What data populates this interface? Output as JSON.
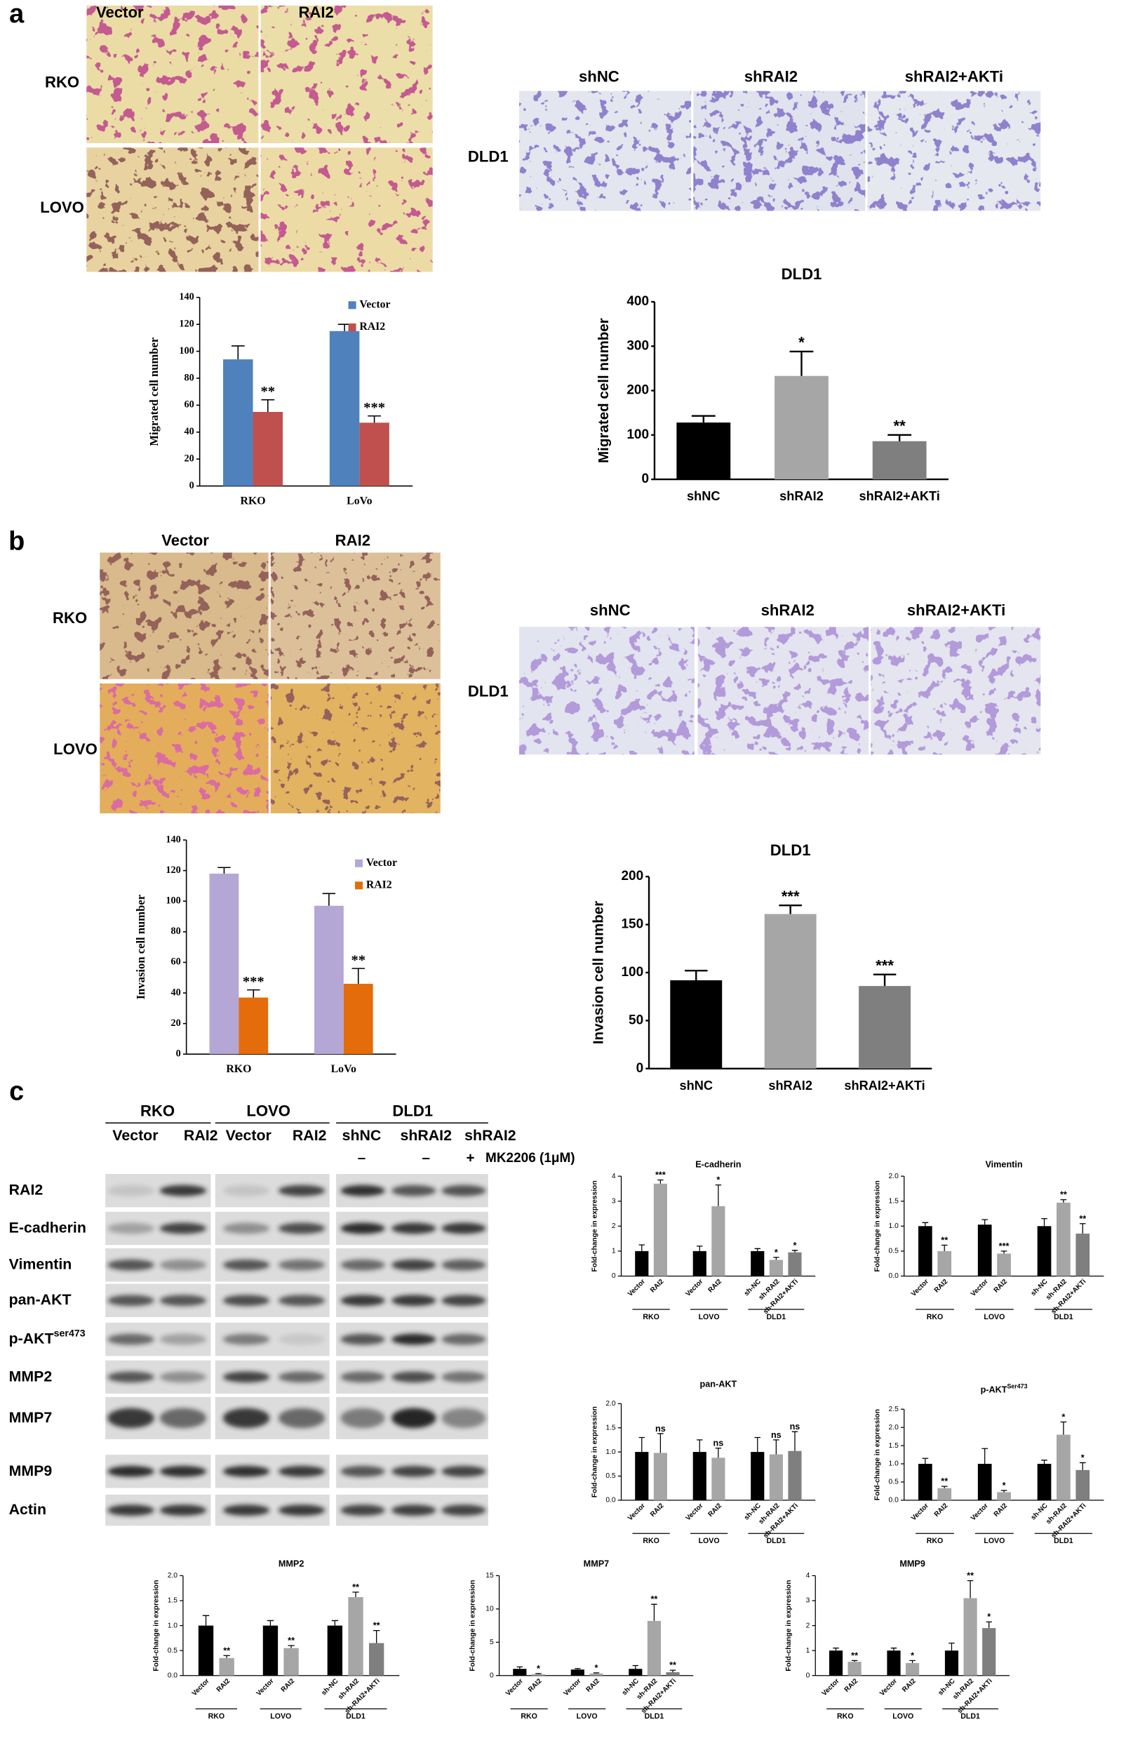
{
  "figure": {
    "panel_labels": [
      "a",
      "b",
      "c"
    ],
    "a": {
      "columns": [
        "Vector",
        "RAI2"
      ],
      "rows": [
        "RKO",
        "LOVO"
      ],
      "dld1_columns": [
        "shNC",
        "shRAI2",
        "shRAI2+AKTi"
      ],
      "dld1_row": "DLD1"
    },
    "b": {
      "columns": [
        "Vector",
        "RAI2"
      ],
      "rows": [
        "RKO",
        "LOVO"
      ],
      "dld1_columns": [
        "shNC",
        "shRAI2",
        "shRAI2+AKTi"
      ],
      "dld1_row": "DLD1"
    },
    "c": {
      "cell_lines": [
        "RKO",
        "LOVO",
        "DLD1"
      ],
      "lanes": [
        "Vector",
        "RAI2",
        "Vector",
        "RAI2",
        "shNC",
        "shRAI2",
        "shRAI2"
      ],
      "treatment_marks": [
        "–",
        "–",
        "+"
      ],
      "treatment": "MK2206 (1μM)",
      "proteins": [
        {
          "label": "RAI2"
        },
        {
          "label": "E-cadherin"
        },
        {
          "label": "Vimentin"
        },
        {
          "label": "pan-AKT"
        },
        {
          "label": "p-AKT",
          "superscript": "ser473"
        },
        {
          "label": "MMP2"
        },
        {
          "label": "MMP7"
        },
        {
          "label": "MMP9"
        },
        {
          "label": "Actin"
        }
      ]
    }
  },
  "chart_data": [
    {
      "type": "bar",
      "categories": [
        "RKO",
        "LoVo"
      ],
      "series": [
        {
          "name": "Vector",
          "color": "#4f81bd",
          "values": [
            94,
            115
          ],
          "errors": [
            10,
            5
          ]
        },
        {
          "name": "RAI2",
          "color": "#c0504d",
          "values": [
            55,
            47
          ],
          "errors": [
            9,
            5
          ],
          "annotations": [
            "**",
            "***"
          ]
        }
      ],
      "ylabel": "Migrated cell number",
      "ylim": [
        0,
        140
      ],
      "yticks": [
        0,
        20,
        40,
        60,
        80,
        100,
        120,
        140
      ],
      "legend": "upper right"
    },
    {
      "type": "bar",
      "title": "DLD1",
      "categories": [
        "shNC",
        "shRAI2",
        "shRAI2+AKTi"
      ],
      "values": [
        128,
        233,
        86
      ],
      "errors": [
        15,
        55,
        14
      ],
      "colors": [
        "#000000",
        "#a6a6a6",
        "#7f7f7f"
      ],
      "annotations": [
        null,
        "*",
        "**"
      ],
      "ylabel": "Migrated cell number",
      "ylim": [
        0,
        400
      ],
      "yticks": [
        0,
        100,
        200,
        300,
        400
      ]
    },
    {
      "type": "bar",
      "categories": [
        "RKO",
        "LoVo"
      ],
      "series": [
        {
          "name": "Vector",
          "color": "#b4a7d6",
          "values": [
            118,
            97
          ],
          "errors": [
            4,
            8
          ]
        },
        {
          "name": "RAI2",
          "color": "#e46c0a",
          "values": [
            37,
            46
          ],
          "errors": [
            5,
            10
          ],
          "annotations": [
            "***",
            "**"
          ]
        }
      ],
      "ylabel": "Invasion cell number",
      "ylim": [
        0,
        140
      ],
      "yticks": [
        0,
        20,
        40,
        60,
        80,
        100,
        120,
        140
      ],
      "legend": "upper right"
    },
    {
      "type": "bar",
      "title": "DLD1",
      "categories": [
        "shNC",
        "shRAI2",
        "shRAI2+AKTi"
      ],
      "values": [
        92,
        161,
        86
      ],
      "errors": [
        10,
        9,
        12
      ],
      "colors": [
        "#000000",
        "#a6a6a6",
        "#7f7f7f"
      ],
      "annotations": [
        null,
        "***",
        "***"
      ],
      "ylabel": "Invasion cell number",
      "ylim": [
        0,
        200
      ],
      "yticks": [
        0,
        50,
        100,
        150,
        200
      ]
    },
    {
      "type": "grouped-bar",
      "title": "E-cadherin",
      "ylabel": "Fold-change in expression",
      "ylim": [
        0,
        4
      ],
      "yticks": [
        0,
        1,
        2,
        3,
        4
      ],
      "groups": [
        {
          "name": "RKO",
          "categories": [
            "Vector",
            "RAI2"
          ],
          "values": [
            1,
            3.7
          ],
          "errors": [
            0.25,
            0.15
          ],
          "colors": [
            "#000000",
            "#a6a6a6"
          ],
          "annotations": [
            null,
            "***"
          ]
        },
        {
          "name": "LOVO",
          "categories": [
            "Vector",
            "RAI2"
          ],
          "values": [
            1,
            2.8
          ],
          "errors": [
            0.2,
            0.85
          ],
          "colors": [
            "#000000",
            "#a6a6a6"
          ],
          "annotations": [
            null,
            "*"
          ]
        },
        {
          "name": "DLD1",
          "categories": [
            "sh-NC",
            "sh-RAI2",
            "sh-RAI2+AKTi"
          ],
          "values": [
            1,
            0.65,
            0.95
          ],
          "errors": [
            0.1,
            0.1,
            0.08
          ],
          "colors": [
            "#000000",
            "#a6a6a6",
            "#7f7f7f"
          ],
          "annotations": [
            null,
            "*",
            "*"
          ]
        }
      ]
    },
    {
      "type": "grouped-bar",
      "title": "Vimentin",
      "ylabel": "Fold-change in expression",
      "ylim": [
        0,
        2
      ],
      "yticks": [
        {
          "value": 0,
          "label": "0.0"
        },
        {
          "value": 0.5,
          "label": "0.5"
        },
        {
          "value": 1,
          "label": "1.0"
        },
        {
          "value": 1.5,
          "label": "1.5"
        },
        {
          "value": 2,
          "label": "2.0"
        }
      ],
      "groups": [
        {
          "name": "RKO",
          "categories": [
            "Vector",
            "RAI2"
          ],
          "values": [
            1,
            0.5
          ],
          "errors": [
            0.07,
            0.12
          ],
          "colors": [
            "#000000",
            "#a6a6a6"
          ],
          "annotations": [
            null,
            "**"
          ]
        },
        {
          "name": "LOVO",
          "categories": [
            "Vector",
            "RAI2"
          ],
          "values": [
            1.03,
            0.45
          ],
          "errors": [
            0.1,
            0.05
          ],
          "colors": [
            "#000000",
            "#a6a6a6"
          ],
          "annotations": [
            null,
            "***"
          ]
        },
        {
          "name": "DLD1",
          "categories": [
            "sh-NC",
            "sh-RAI2",
            "sh-RAI2+AKTi"
          ],
          "values": [
            1,
            1.47,
            0.85
          ],
          "errors": [
            0.15,
            0.06,
            0.2
          ],
          "colors": [
            "#000000",
            "#a6a6a6",
            "#7f7f7f"
          ],
          "annotations": [
            null,
            "**",
            "**"
          ]
        }
      ]
    },
    {
      "type": "grouped-bar",
      "title": "pan-AKT",
      "ylabel": "Fold-change in expression",
      "ylim": [
        0,
        2
      ],
      "yticks": [
        {
          "value": 0,
          "label": "0.0"
        },
        {
          "value": 0.5,
          "label": "0.5"
        },
        {
          "value": 1,
          "label": "1.0"
        },
        {
          "value": 1.5,
          "label": "1.5"
        },
        {
          "value": 2,
          "label": "2.0"
        }
      ],
      "groups": [
        {
          "name": "RKO",
          "categories": [
            "Vector",
            "RAI2"
          ],
          "values": [
            1,
            0.98
          ],
          "errors": [
            0.3,
            0.4
          ],
          "colors": [
            "#000000",
            "#a6a6a6"
          ],
          "annotations": [
            null,
            "ns"
          ]
        },
        {
          "name": "LOVO",
          "categories": [
            "Vector",
            "RAI2"
          ],
          "values": [
            1,
            0.88
          ],
          "errors": [
            0.25,
            0.2
          ],
          "colors": [
            "#000000",
            "#a6a6a6"
          ],
          "annotations": [
            null,
            "ns"
          ]
        },
        {
          "name": "DLD1",
          "categories": [
            "sh-NC",
            "sh-RAI2",
            "sh-RAI2+AKTi"
          ],
          "values": [
            1,
            0.95,
            1.02
          ],
          "errors": [
            0.3,
            0.3,
            0.4
          ],
          "colors": [
            "#000000",
            "#a6a6a6",
            "#7f7f7f"
          ],
          "annotations": [
            null,
            "ns",
            "ns"
          ]
        }
      ]
    },
    {
      "type": "grouped-bar",
      "title": "p-AKT",
      "title_superscript": "Ser473",
      "ylabel": "Fold-change in expression",
      "ylim": [
        0,
        2.5
      ],
      "yticks": [
        {
          "value": 0,
          "label": "0.0"
        },
        {
          "value": 0.5,
          "label": "0.5"
        },
        {
          "value": 1,
          "label": "1.0"
        },
        {
          "value": 1.5,
          "label": "1.5"
        },
        {
          "value": 2,
          "label": "2.0"
        },
        {
          "value": 2.5,
          "label": "2.5"
        }
      ],
      "groups": [
        {
          "name": "RKO",
          "categories": [
            "Vector",
            "RAI2"
          ],
          "values": [
            1,
            0.33
          ],
          "errors": [
            0.15,
            0.05
          ],
          "colors": [
            "#000000",
            "#a6a6a6"
          ],
          "annotations": [
            null,
            "**"
          ]
        },
        {
          "name": "LOVO",
          "categories": [
            "Vector",
            "RAI2"
          ],
          "values": [
            1,
            0.22
          ],
          "errors": [
            0.42,
            0.05
          ],
          "colors": [
            "#000000",
            "#a6a6a6"
          ],
          "annotations": [
            null,
            "*"
          ]
        },
        {
          "name": "DLD1",
          "categories": [
            "sh-NC",
            "sh-RAI2",
            "sh-RAI2+AKTi"
          ],
          "values": [
            1,
            1.8,
            0.83
          ],
          "errors": [
            0.1,
            0.35,
            0.2
          ],
          "colors": [
            "#000000",
            "#a6a6a6",
            "#7f7f7f"
          ],
          "annotations": [
            null,
            "*",
            "*"
          ]
        }
      ]
    },
    {
      "type": "grouped-bar",
      "title": "MMP2",
      "ylabel": "Fold-change in expression",
      "ylim": [
        0,
        2
      ],
      "yticks": [
        {
          "value": 0,
          "label": "0.0"
        },
        {
          "value": 0.5,
          "label": "0.5"
        },
        {
          "value": 1,
          "label": "1.0"
        },
        {
          "value": 1.5,
          "label": "1.5"
        },
        {
          "value": 2,
          "label": "2.0"
        }
      ],
      "groups": [
        {
          "name": "RKO",
          "categories": [
            "Vector",
            "RAI2"
          ],
          "values": [
            1,
            0.35
          ],
          "errors": [
            0.2,
            0.05
          ],
          "colors": [
            "#000000",
            "#a6a6a6"
          ],
          "annotations": [
            null,
            "**"
          ]
        },
        {
          "name": "LOVO",
          "categories": [
            "Vector",
            "RAI2"
          ],
          "values": [
            1,
            0.55
          ],
          "errors": [
            0.1,
            0.05
          ],
          "colors": [
            "#000000",
            "#a6a6a6"
          ],
          "annotations": [
            null,
            "**"
          ]
        },
        {
          "name": "DLD1",
          "categories": [
            "sh-NC",
            "sh-RAI2",
            "sh-RAI2+AKTi"
          ],
          "values": [
            1,
            1.57,
            0.65
          ],
          "errors": [
            0.1,
            0.1,
            0.25
          ],
          "colors": [
            "#000000",
            "#a6a6a6",
            "#7f7f7f"
          ],
          "annotations": [
            null,
            "**",
            "**"
          ]
        }
      ]
    },
    {
      "type": "grouped-bar",
      "title": "MMP7",
      "ylabel": "Fold-change in expression",
      "ylim": [
        0,
        15
      ],
      "yticks": [
        0,
        5,
        10,
        15
      ],
      "groups": [
        {
          "name": "RKO",
          "categories": [
            "Vector",
            "RAI2"
          ],
          "values": [
            1,
            0.2
          ],
          "errors": [
            0.3,
            0.1
          ],
          "colors": [
            "#000000",
            "#a6a6a6"
          ],
          "annotations": [
            null,
            "*"
          ]
        },
        {
          "name": "LOVO",
          "categories": [
            "Vector",
            "RAI2"
          ],
          "values": [
            0.9,
            0.3
          ],
          "errors": [
            0.15,
            0.1
          ],
          "colors": [
            "#000000",
            "#a6a6a6"
          ],
          "annotations": [
            null,
            "*"
          ]
        },
        {
          "name": "DLD1",
          "categories": [
            "sh-NC",
            "sh-RAI2",
            "sh-RAI2+AKTi"
          ],
          "values": [
            1,
            8.2,
            0.5
          ],
          "errors": [
            0.5,
            2.5,
            0.3
          ],
          "colors": [
            "#000000",
            "#a6a6a6",
            "#7f7f7f"
          ],
          "annotations": [
            null,
            "**",
            "**"
          ]
        }
      ]
    },
    {
      "type": "grouped-bar",
      "title": "MMP9",
      "ylabel": "Fold-change in expression",
      "ylim": [
        0,
        4
      ],
      "yticks": [
        0,
        1,
        2,
        3,
        4
      ],
      "groups": [
        {
          "name": "RKO",
          "categories": [
            "Vector",
            "RAI2"
          ],
          "values": [
            1,
            0.55
          ],
          "errors": [
            0.1,
            0.05
          ],
          "colors": [
            "#000000",
            "#a6a6a6"
          ],
          "annotations": [
            null,
            "**"
          ]
        },
        {
          "name": "LOVO",
          "categories": [
            "Vector",
            "RAI2"
          ],
          "values": [
            1,
            0.5
          ],
          "errors": [
            0.1,
            0.1
          ],
          "colors": [
            "#000000",
            "#a6a6a6"
          ],
          "annotations": [
            null,
            "*"
          ]
        },
        {
          "name": "DLD1",
          "categories": [
            "sh-NC",
            "sh-RAI2",
            "sh-RAI2+AKTi"
          ],
          "values": [
            1,
            3.1,
            1.9
          ],
          "errors": [
            0.3,
            0.7,
            0.25
          ],
          "colors": [
            "#000000",
            "#a6a6a6",
            "#7f7f7f"
          ],
          "annotations": [
            null,
            "**",
            "*"
          ]
        }
      ]
    }
  ]
}
